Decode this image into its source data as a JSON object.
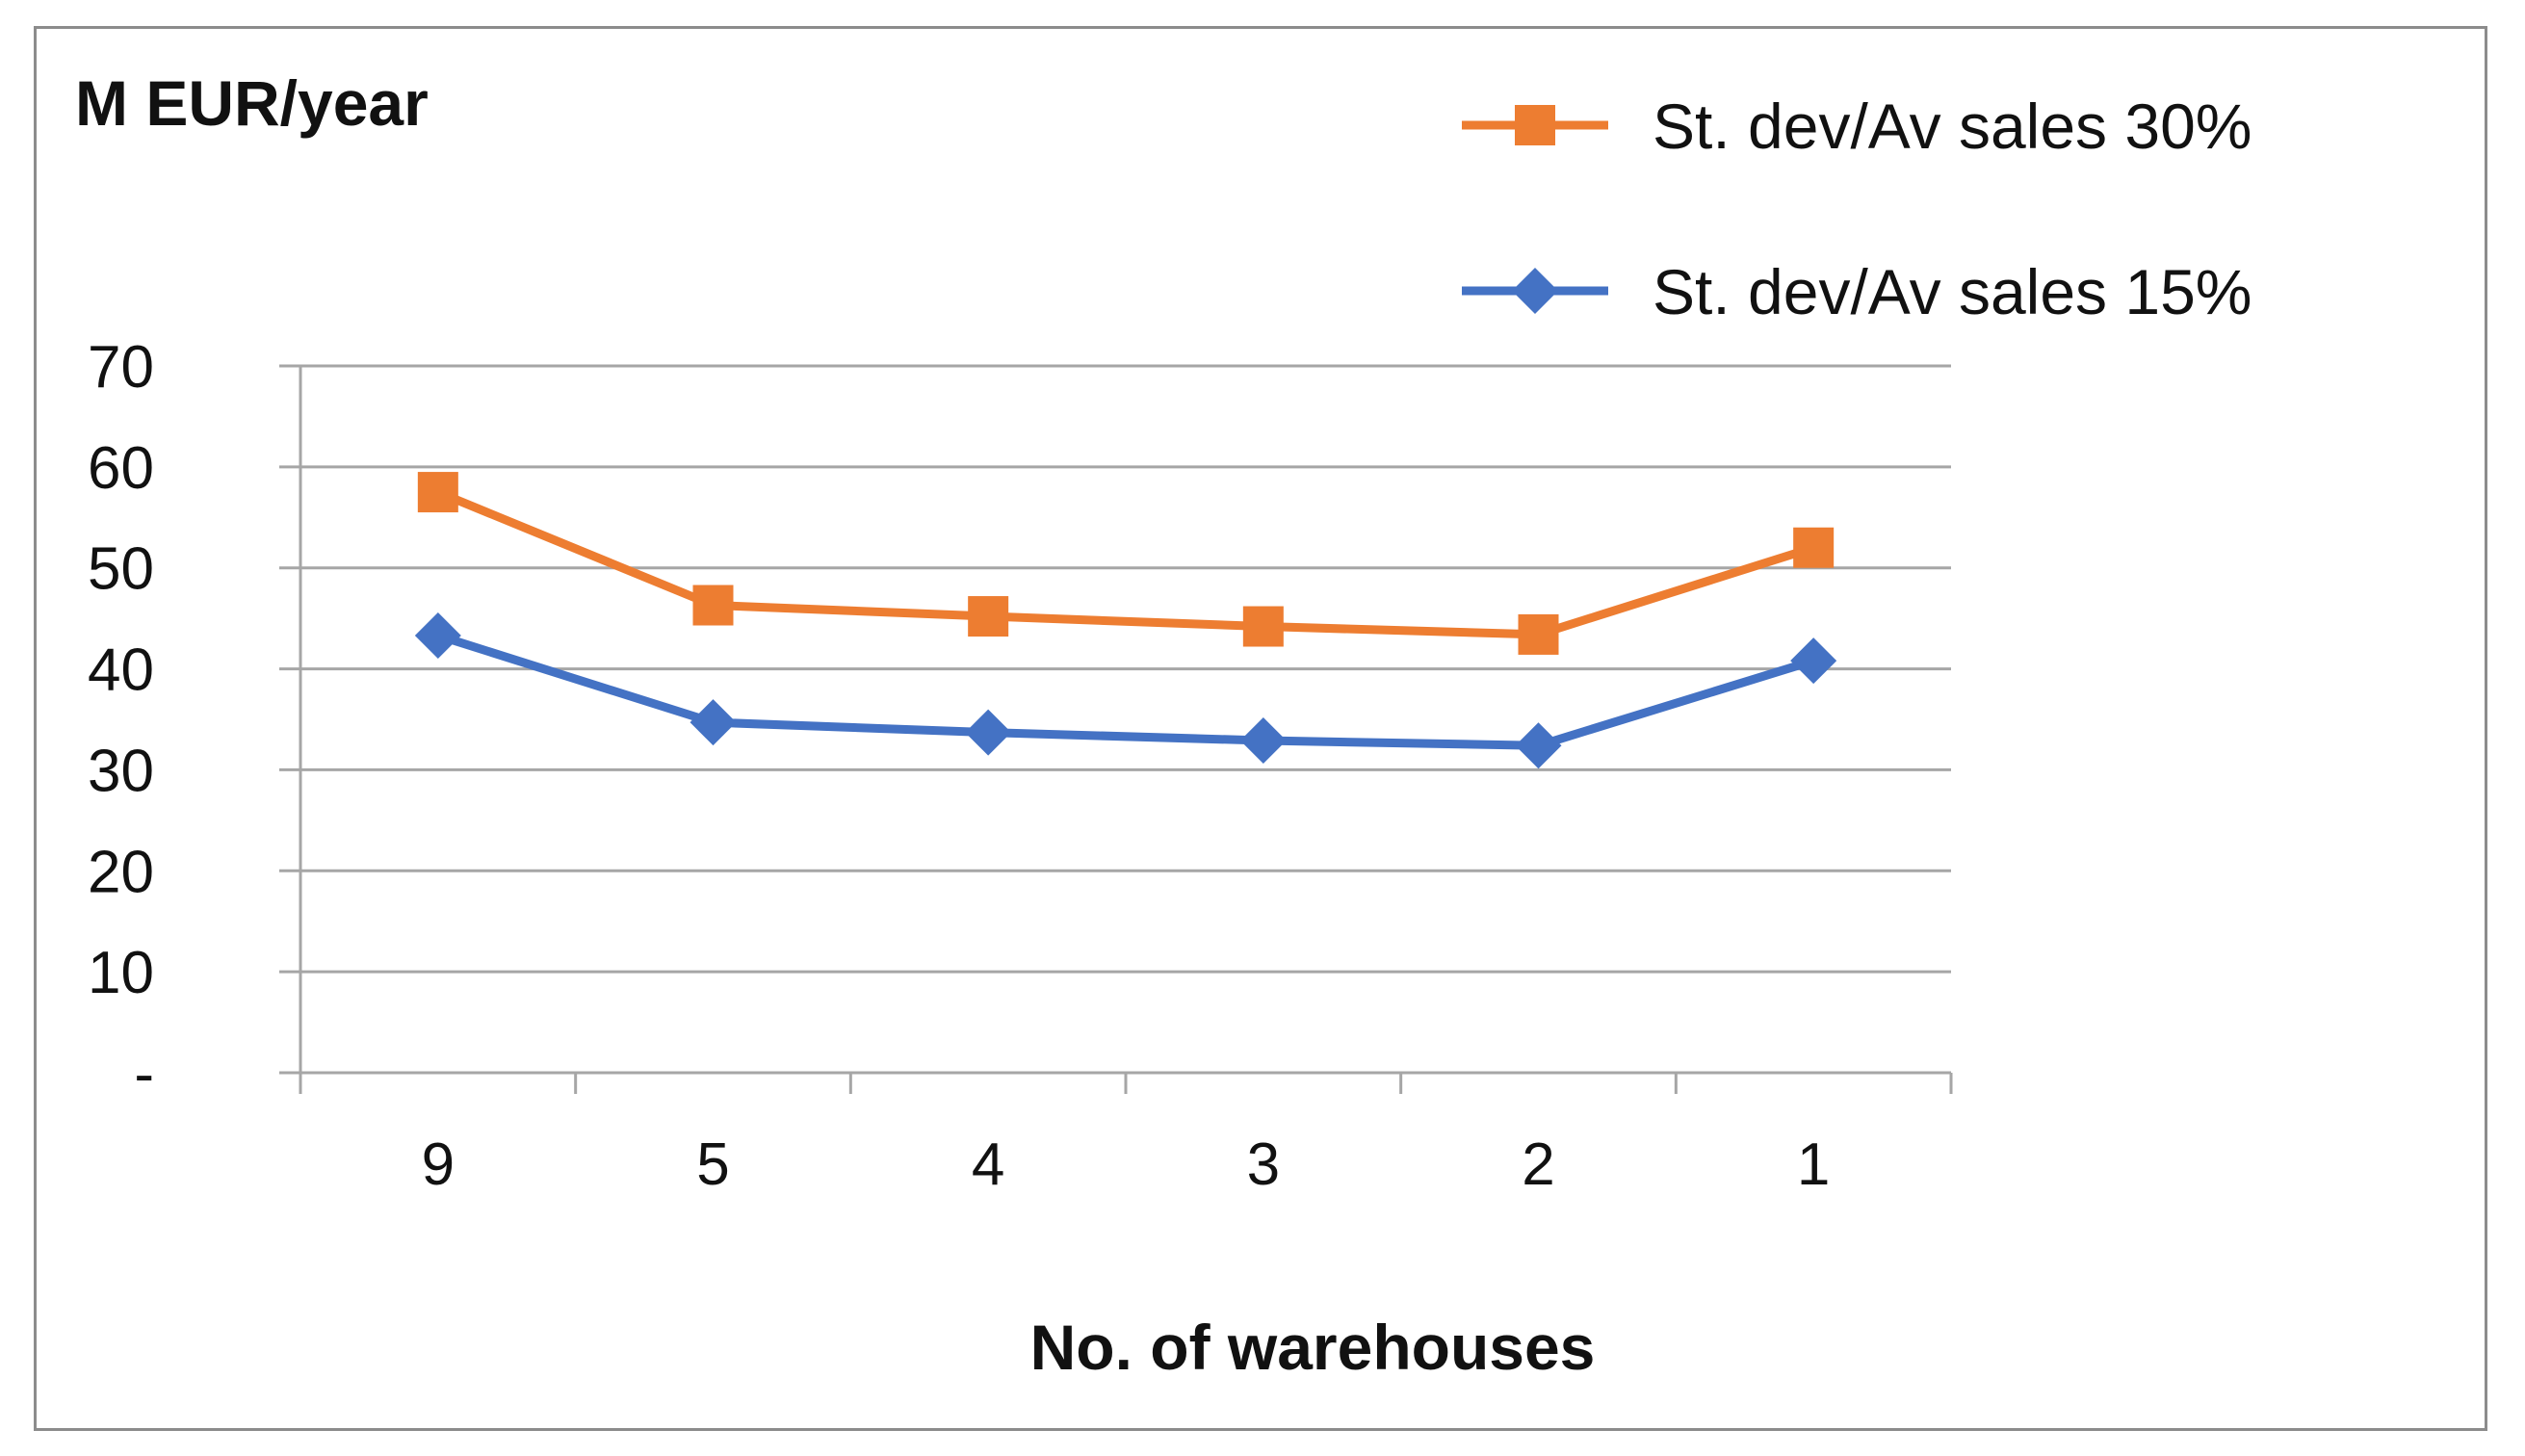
{
  "chart_data": {
    "type": "line",
    "title": "",
    "ylabel": "M EUR/year",
    "xlabel": "No. of warehouses",
    "categories": [
      "9",
      "5",
      "4",
      "3",
      "2",
      "1"
    ],
    "ylim": [
      0,
      70
    ],
    "yticks": [
      0,
      10,
      20,
      30,
      40,
      50,
      60,
      70
    ],
    "ytick_labels": [
      "-",
      "10",
      "20",
      "30",
      "40",
      "50",
      "60",
      "70"
    ],
    "grid": true,
    "legend_position": "top-right",
    "series": [
      {
        "name": "St. dev/Av sales  30%",
        "values": [
          57.5,
          46.3,
          45.2,
          44.2,
          43.4,
          52.0
        ],
        "color": "#ED7D31",
        "marker": "square"
      },
      {
        "name": "St. dev/Av sales  15%",
        "values": [
          43.3,
          34.7,
          33.7,
          32.9,
          32.4,
          40.8
        ],
        "color": "#4472C4",
        "marker": "diamond"
      }
    ]
  }
}
